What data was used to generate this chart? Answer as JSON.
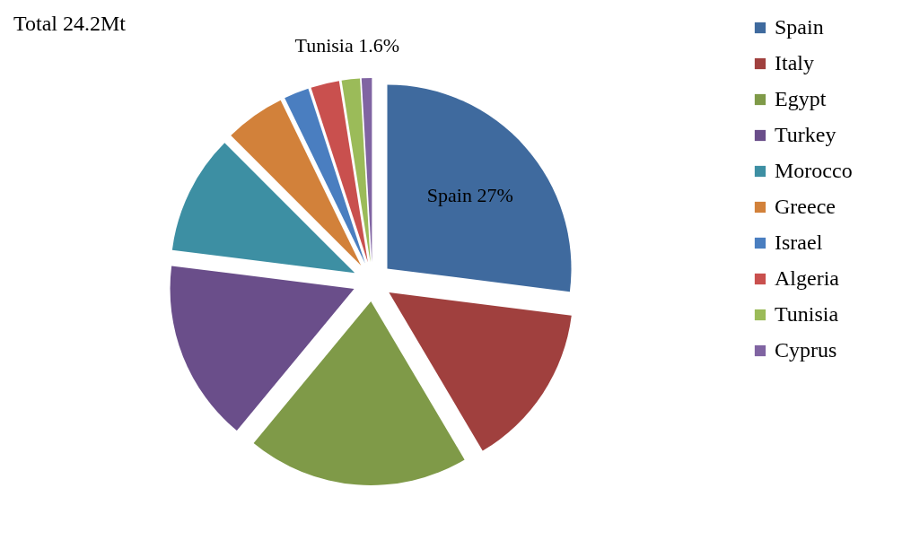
{
  "chart_data": {
    "type": "pie",
    "title": "Total 24.2Mt",
    "categories": [
      "Spain",
      "Italy",
      "Egypt",
      "Turkey",
      "Morocco",
      "Greece",
      "Israel",
      "Algeria",
      "Tunisia",
      "Cyprus"
    ],
    "values": [
      27,
      14.5,
      19.5,
      16,
      10.5,
      5.3,
      2.2,
      2.5,
      1.6,
      0.9
    ],
    "colors": [
      "#3f6a9e",
      "#a0403e",
      "#7f9a48",
      "#6a4e8a",
      "#3d8fa3",
      "#d2813a",
      "#4a7ec0",
      "#c9504e",
      "#9bbb59",
      "#8064a2"
    ],
    "value_labels": [
      "Spain 27%",
      null,
      null,
      null,
      null,
      null,
      null,
      null,
      "Tunisia 1.6%",
      null
    ],
    "legend": "right"
  }
}
